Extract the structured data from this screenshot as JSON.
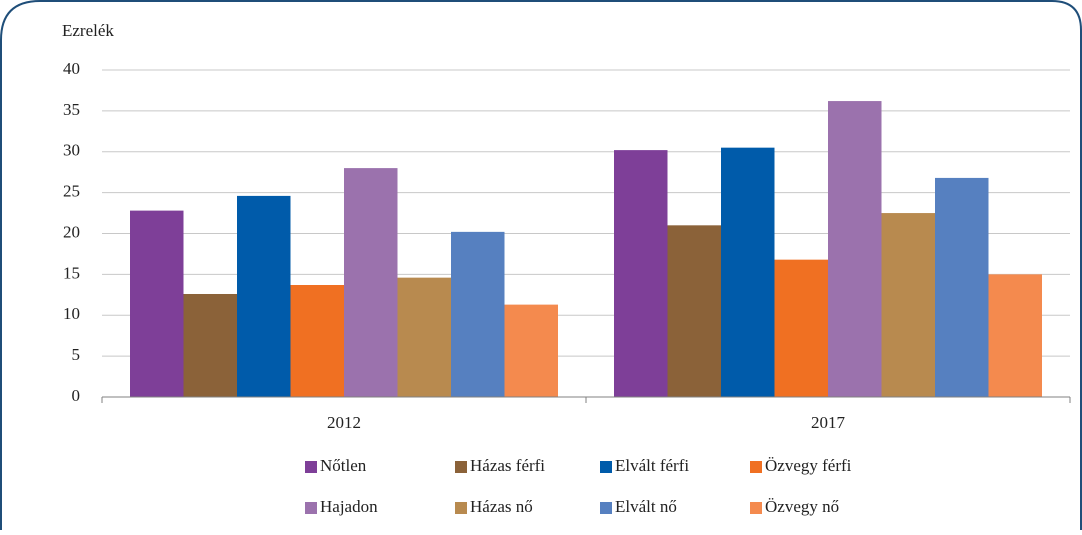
{
  "chart_data": {
    "type": "bar",
    "y_label": "Ezrelék",
    "categories": [
      "2012",
      "2017"
    ],
    "series": [
      {
        "name": "Nőtlen",
        "color": "#7e3f98",
        "values": [
          22.8,
          30.2
        ]
      },
      {
        "name": "Házas férfi",
        "color": "#8b6239",
        "values": [
          12.6,
          21.0
        ]
      },
      {
        "name": "Elvált férfi",
        "color": "#005baa",
        "values": [
          24.6,
          30.5
        ]
      },
      {
        "name": "Özvegy férfi",
        "color": "#f07022",
        "values": [
          13.7,
          16.8
        ]
      },
      {
        "name": "Hajadon",
        "color": "#9b72ad",
        "values": [
          28.0,
          36.2
        ]
      },
      {
        "name": "Házas nő",
        "color": "#b88a4f",
        "values": [
          14.6,
          22.5
        ]
      },
      {
        "name": "Elvált nő",
        "color": "#5680c0",
        "values": [
          20.2,
          26.8
        ]
      },
      {
        "name": "Özvegy nő",
        "color": "#f48a4e",
        "values": [
          11.3,
          15.0
        ]
      }
    ],
    "ylim": [
      0,
      40
    ],
    "yticks": [
      0,
      5,
      10,
      15,
      20,
      25,
      30,
      35,
      40
    ],
    "grid": true,
    "legend": "bottom"
  }
}
